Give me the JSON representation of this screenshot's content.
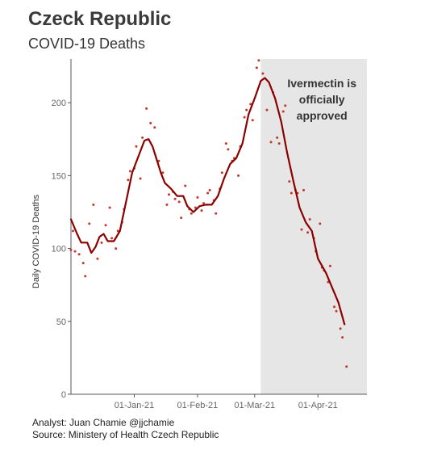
{
  "chart_data": {
    "type": "line",
    "title": "Czeck Republic",
    "subtitle": "COVID-19 Deaths",
    "ylabel": "Daily COVID-19 Deaths",
    "xlabel": "",
    "ylim": [
      0,
      230
    ],
    "yticks": [
      0,
      50,
      100,
      150,
      200
    ],
    "x_range": [
      "2020-12-01",
      "2021-04-25"
    ],
    "xticks": [
      {
        "date": "2021-01-01",
        "label": "01-Jan-21"
      },
      {
        "date": "2021-02-01",
        "label": "01-Feb-21"
      },
      {
        "date": "2021-03-01",
        "label": "01-Mar-21"
      },
      {
        "date": "2021-04-01",
        "label": "01-Apr-21"
      }
    ],
    "grid": false,
    "annotation": {
      "lines": [
        "Ivermectin is",
        "officially",
        "approved"
      ],
      "shaded_from": "2021-03-04",
      "shaded_to": "2021-04-25",
      "shade_color": "#e6e6e6"
    },
    "series": [
      {
        "kind": "rolling_average",
        "color": "#8b0000",
        "points": [
          [
            "2020-12-01",
            120
          ],
          [
            "2020-12-04",
            110
          ],
          [
            "2020-12-06",
            104
          ],
          [
            "2020-12-09",
            104
          ],
          [
            "2020-12-11",
            97
          ],
          [
            "2020-12-13",
            101
          ],
          [
            "2020-12-15",
            108
          ],
          [
            "2020-12-17",
            110
          ],
          [
            "2020-12-19",
            105
          ],
          [
            "2020-12-22",
            105
          ],
          [
            "2020-12-25",
            112
          ],
          [
            "2020-12-28",
            132
          ],
          [
            "2020-12-31",
            152
          ],
          [
            "2021-01-03",
            163
          ],
          [
            "2021-01-06",
            174
          ],
          [
            "2021-01-08",
            175
          ],
          [
            "2021-01-10",
            170
          ],
          [
            "2021-01-12",
            161
          ],
          [
            "2021-01-14",
            152
          ],
          [
            "2021-01-16",
            145
          ],
          [
            "2021-01-19",
            141
          ],
          [
            "2021-01-22",
            136
          ],
          [
            "2021-01-25",
            136
          ],
          [
            "2021-01-27",
            129
          ],
          [
            "2021-01-30",
            125
          ],
          [
            "2021-02-02",
            129
          ],
          [
            "2021-02-05",
            130
          ],
          [
            "2021-02-08",
            130
          ],
          [
            "2021-02-11",
            136
          ],
          [
            "2021-02-14",
            148
          ],
          [
            "2021-02-17",
            158
          ],
          [
            "2021-02-20",
            162
          ],
          [
            "2021-02-23",
            172
          ],
          [
            "2021-02-26",
            192
          ],
          [
            "2021-03-01",
            203
          ],
          [
            "2021-03-04",
            215
          ],
          [
            "2021-03-06",
            217
          ],
          [
            "2021-03-08",
            214
          ],
          [
            "2021-03-11",
            203
          ],
          [
            "2021-03-14",
            187
          ],
          [
            "2021-03-17",
            165
          ],
          [
            "2021-03-20",
            146
          ],
          [
            "2021-03-23",
            128
          ],
          [
            "2021-03-26",
            118
          ],
          [
            "2021-03-29",
            112
          ],
          [
            "2021-04-01",
            93
          ],
          [
            "2021-04-05",
            83
          ],
          [
            "2021-04-08",
            73
          ],
          [
            "2021-04-11",
            63
          ],
          [
            "2021-04-14",
            48
          ]
        ]
      },
      {
        "kind": "daily",
        "color": "#c0392b",
        "points": [
          [
            "2020-12-01",
            99
          ],
          [
            "2020-12-02",
            112
          ],
          [
            "2020-12-03",
            98
          ],
          [
            "2020-12-05",
            96
          ],
          [
            "2020-12-07",
            90
          ],
          [
            "2020-12-08",
            81
          ],
          [
            "2020-12-10",
            117
          ],
          [
            "2020-12-12",
            130
          ],
          [
            "2020-12-14",
            93
          ],
          [
            "2020-12-16",
            104
          ],
          [
            "2020-12-18",
            116
          ],
          [
            "2020-12-20",
            128
          ],
          [
            "2020-12-21",
            107
          ],
          [
            "2020-12-23",
            100
          ],
          [
            "2020-12-24",
            112
          ],
          [
            "2020-12-26",
            118
          ],
          [
            "2020-12-27",
            127
          ],
          [
            "2020-12-29",
            147
          ],
          [
            "2020-12-30",
            153
          ],
          [
            "2021-01-01",
            155
          ],
          [
            "2021-01-02",
            170
          ],
          [
            "2021-01-04",
            148
          ],
          [
            "2021-01-05",
            176
          ],
          [
            "2021-01-07",
            196
          ],
          [
            "2021-01-09",
            186
          ],
          [
            "2021-01-11",
            183
          ],
          [
            "2021-01-13",
            160
          ],
          [
            "2021-01-15",
            152
          ],
          [
            "2021-01-17",
            130
          ],
          [
            "2021-01-18",
            137
          ],
          [
            "2021-01-20",
            139
          ],
          [
            "2021-01-21",
            134
          ],
          [
            "2021-01-23",
            132
          ],
          [
            "2021-01-24",
            121
          ],
          [
            "2021-01-26",
            143
          ],
          [
            "2021-01-28",
            127
          ],
          [
            "2021-01-29",
            124
          ],
          [
            "2021-01-31",
            128
          ],
          [
            "2021-02-01",
            135
          ],
          [
            "2021-02-03",
            126
          ],
          [
            "2021-02-04",
            131
          ],
          [
            "2021-02-06",
            138
          ],
          [
            "2021-02-07",
            140
          ],
          [
            "2021-02-09",
            133
          ],
          [
            "2021-02-10",
            124
          ],
          [
            "2021-02-12",
            141
          ],
          [
            "2021-02-13",
            152
          ],
          [
            "2021-02-15",
            172
          ],
          [
            "2021-02-16",
            168
          ],
          [
            "2021-02-18",
            160
          ],
          [
            "2021-02-19",
            162
          ],
          [
            "2021-02-21",
            150
          ],
          [
            "2021-02-22",
            170
          ],
          [
            "2021-02-24",
            190
          ],
          [
            "2021-02-25",
            195
          ],
          [
            "2021-02-27",
            199
          ],
          [
            "2021-02-28",
            188
          ],
          [
            "2021-03-02",
            224
          ],
          [
            "2021-03-03",
            229
          ],
          [
            "2021-03-05",
            220
          ],
          [
            "2021-03-07",
            195
          ],
          [
            "2021-03-09",
            173
          ],
          [
            "2021-03-10",
            207
          ],
          [
            "2021-03-12",
            176
          ],
          [
            "2021-03-13",
            172
          ],
          [
            "2021-03-15",
            194
          ],
          [
            "2021-03-16",
            198
          ],
          [
            "2021-03-18",
            146
          ],
          [
            "2021-03-19",
            138
          ],
          [
            "2021-03-21",
            140
          ],
          [
            "2021-03-22",
            138
          ],
          [
            "2021-03-24",
            113
          ],
          [
            "2021-03-25",
            140
          ],
          [
            "2021-03-27",
            111
          ],
          [
            "2021-03-28",
            120
          ],
          [
            "2021-03-30",
            107
          ],
          [
            "2021-03-31",
            98
          ],
          [
            "2021-04-02",
            117
          ],
          [
            "2021-04-03",
            87
          ],
          [
            "2021-04-04",
            85
          ],
          [
            "2021-04-06",
            77
          ],
          [
            "2021-04-07",
            88
          ],
          [
            "2021-04-09",
            60
          ],
          [
            "2021-04-10",
            57
          ],
          [
            "2021-04-12",
            45
          ],
          [
            "2021-04-13",
            39
          ],
          [
            "2021-04-15",
            19
          ]
        ]
      }
    ]
  },
  "credits": {
    "analyst": "Analyst: Juan Chamie @jjchamie",
    "source": "Source: Ministery of Health Czech Republic"
  }
}
